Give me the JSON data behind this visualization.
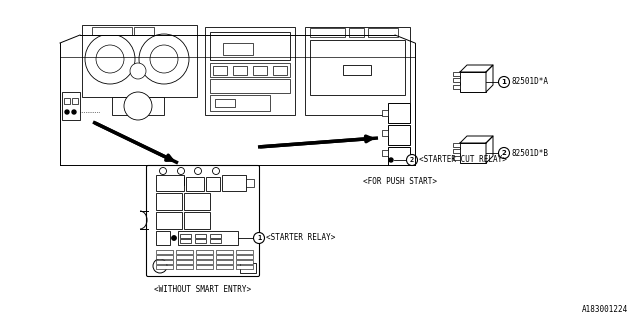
{
  "bg_color": "#ffffff",
  "diagram_id": "A183001224",
  "caption_without": "<WITHOUT SMART ENTRY>",
  "caption_push": "<FOR PUSH START>",
  "label_starter_relay": "<STARTER RELAY>",
  "label_starter_cut": "<STARTER CUT RELAY>",
  "label_part1": "82501D*A",
  "label_part2": "82501D*B",
  "lw_thin": 0.5,
  "lw_med": 0.7,
  "lw_thick": 2.5
}
